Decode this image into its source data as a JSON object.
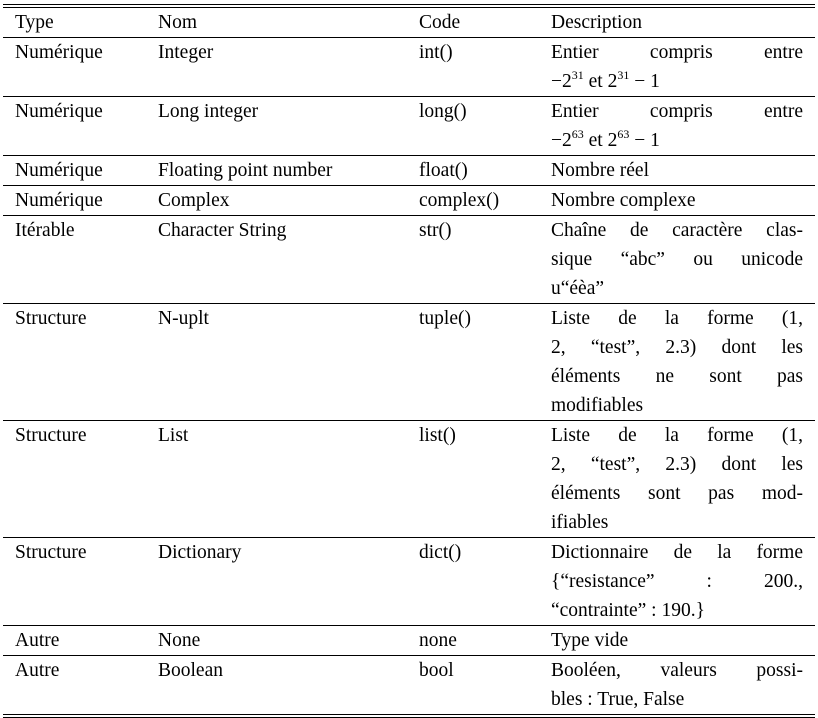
{
  "table": {
    "headers": [
      "Type",
      "Nom",
      "Code",
      "Description"
    ],
    "rows": [
      {
        "type": "Numérique",
        "nom": "Integer",
        "code": "int()",
        "desc": [
          "Entier compris entre",
          "−2^31 et 2^31 − 1"
        ]
      },
      {
        "type": "Numérique",
        "nom": "Long integer",
        "code": "long()",
        "desc": [
          "Entier compris entre",
          "−2^63 et 2^63 − 1"
        ]
      },
      {
        "type": "Numérique",
        "nom": "Floating point number",
        "code": "float()",
        "desc": [
          "Nombre réel"
        ]
      },
      {
        "type": "Numérique",
        "nom": "Complex",
        "code": "complex()",
        "desc": [
          "Nombre complexe"
        ]
      },
      {
        "type": "Itérable",
        "nom": "Character String",
        "code": "str()",
        "desc": [
          "Chaîne de caractère clas-",
          "sique “abc” ou unicode",
          "u“éèa”"
        ]
      },
      {
        "type": "Structure",
        "nom": "N-uplt",
        "code": "tuple()",
        "desc": [
          "Liste de la forme (1,",
          "2, “test”, 2.3) dont les",
          "éléments ne sont pas",
          "modifiables"
        ]
      },
      {
        "type": "Structure",
        "nom": "List",
        "code": "list()",
        "desc": [
          "Liste de la forme (1,",
          "2, “test”, 2.3) dont les",
          "éléments sont pas mod-",
          "ifiables"
        ]
      },
      {
        "type": "Structure",
        "nom": "Dictionary",
        "code": "dict()",
        "desc": [
          "Dictionnaire de la forme",
          "{“resistance” : 200.,",
          "“contrainte” : 190.}"
        ]
      },
      {
        "type": "Autre",
        "nom": "None",
        "code": "none",
        "desc": [
          "Type vide"
        ]
      },
      {
        "type": "Autre",
        "nom": "Boolean",
        "code": "bool",
        "desc": [
          "Booléen, valeurs possi-",
          "bles : True, False"
        ]
      }
    ]
  }
}
